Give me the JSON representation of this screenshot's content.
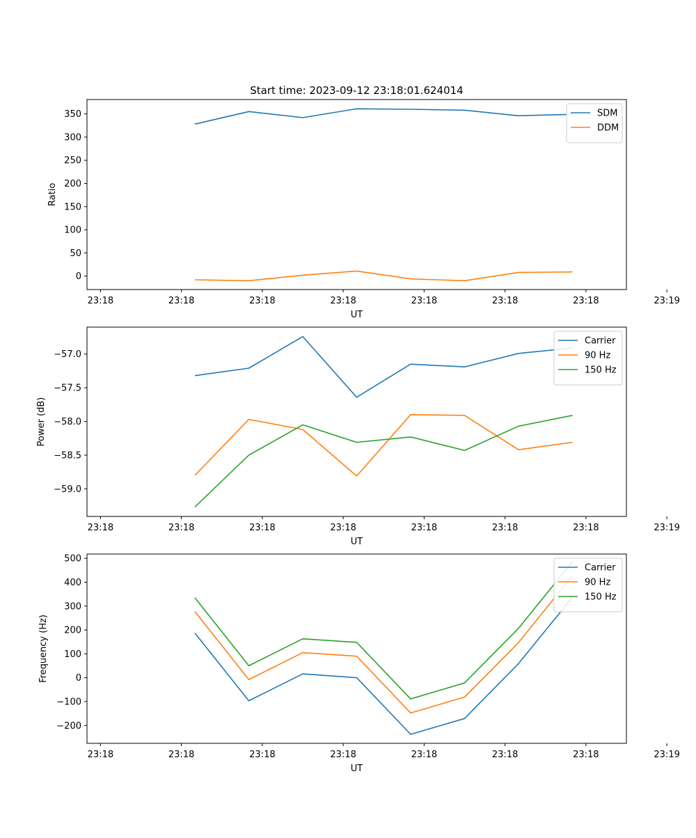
{
  "title": "Start time: 2023-09-12 23:18:01.624014",
  "colors": {
    "blue": "#1f77b4",
    "orange": "#ff7f0e",
    "green": "#2ca02c"
  },
  "chart_data": [
    {
      "type": "line",
      "title": "Start time: 2023-09-12 23:18:01.624014",
      "xlabel": "UT",
      "ylabel": "Ratio",
      "x": [
        0.75,
        1.75,
        2.75,
        3.75,
        4.75,
        5.75,
        6.75,
        7.75
      ],
      "xlim": [
        -1.25,
        8.75
      ],
      "xticks": [
        -1.0,
        0.5,
        2.0,
        3.5,
        5.0,
        6.5,
        8.0,
        9.5
      ],
      "xtick_labels": [
        "23:18",
        "23:18",
        "23:18",
        "23:18",
        "23:18",
        "23:18",
        "23:18",
        "23:19"
      ],
      "ylim": [
        -29,
        381
      ],
      "yticks": [
        0,
        50,
        100,
        150,
        200,
        250,
        300,
        350
      ],
      "ytick_labels": [
        "0",
        "50",
        "100",
        "150",
        "200",
        "250",
        "300",
        "350"
      ],
      "legend_position": "top-right",
      "series": [
        {
          "name": "SDM",
          "color": "#1f77b4",
          "values": [
            328,
            355,
            342,
            361,
            360,
            358,
            346,
            349
          ]
        },
        {
          "name": "DDM",
          "color": "#ff7f0e",
          "values": [
            -8,
            -10,
            2,
            11,
            -6,
            -10,
            8,
            9
          ]
        }
      ]
    },
    {
      "type": "line",
      "title": "",
      "xlabel": "UT",
      "ylabel": "Power (dB)",
      "x": [
        0.75,
        1.75,
        2.75,
        3.75,
        4.75,
        5.75,
        6.75,
        7.75
      ],
      "xlim": [
        -1.25,
        8.75
      ],
      "xticks": [
        -1.0,
        0.5,
        2.0,
        3.5,
        5.0,
        6.5,
        8.0,
        9.5
      ],
      "xtick_labels": [
        "23:18",
        "23:18",
        "23:18",
        "23:18",
        "23:18",
        "23:18",
        "23:18",
        "23:19"
      ],
      "ylim": [
        -59.41,
        -56.6
      ],
      "yticks": [
        -59.0,
        -58.5,
        -58.0,
        -57.5,
        -57.0
      ],
      "ytick_labels": [
        "−59.0",
        "−58.5",
        "−58.0",
        "−57.5",
        "−57.0"
      ],
      "legend_position": "top-right",
      "series": [
        {
          "name": "Carrier",
          "color": "#1f77b4",
          "values": [
            -57.32,
            -57.21,
            -56.74,
            -57.64,
            -57.15,
            -57.19,
            -56.99,
            -56.91
          ]
        },
        {
          "name": "90 Hz",
          "color": "#ff7f0e",
          "values": [
            -58.8,
            -57.97,
            -58.12,
            -58.81,
            -57.9,
            -57.91,
            -58.42,
            -58.31
          ]
        },
        {
          "name": "150 Hz",
          "color": "#2ca02c",
          "values": [
            -59.27,
            -58.5,
            -58.05,
            -58.31,
            -58.23,
            -58.43,
            -58.07,
            -57.91
          ]
        }
      ]
    },
    {
      "type": "line",
      "title": "",
      "xlabel": "UT",
      "ylabel": "Frequency (Hz)",
      "x": [
        0.75,
        1.75,
        2.75,
        3.75,
        4.75,
        5.75,
        6.75,
        7.75
      ],
      "xlim": [
        -1.25,
        8.75
      ],
      "xticks": [
        -1.0,
        0.5,
        2.0,
        3.5,
        5.0,
        6.5,
        8.0,
        9.5
      ],
      "xtick_labels": [
        "23:18",
        "23:18",
        "23:18",
        "23:18",
        "23:18",
        "23:18",
        "23:18",
        "23:19"
      ],
      "ylim": [
        -275,
        518
      ],
      "yticks": [
        -200,
        -100,
        0,
        100,
        200,
        300,
        400,
        500
      ],
      "ytick_labels": [
        "−200",
        "−100",
        "0",
        "100",
        "200",
        "300",
        "400",
        "500"
      ],
      "legend_position": "top-right",
      "series": [
        {
          "name": "Carrier",
          "color": "#1f77b4",
          "values": [
            187,
            -97,
            16,
            0,
            -237,
            -171,
            59,
            337
          ]
        },
        {
          "name": "90 Hz",
          "color": "#ff7f0e",
          "values": [
            277,
            -8,
            105,
            90,
            -148,
            -81,
            147,
            428
          ]
        },
        {
          "name": "150 Hz",
          "color": "#2ca02c",
          "values": [
            335,
            50,
            163,
            148,
            -89,
            -22,
            207,
            486
          ]
        }
      ]
    }
  ]
}
